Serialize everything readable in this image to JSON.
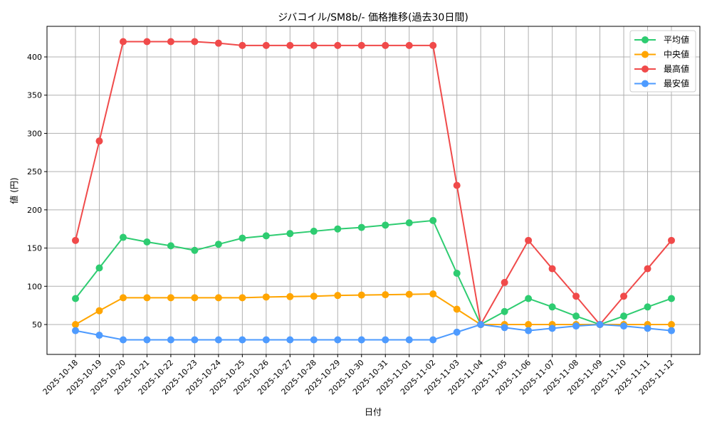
{
  "chart_data": {
    "type": "line",
    "title": "ジバコイル/SM8b/- 価格推移(過去30日間)",
    "xlabel": "日付",
    "ylabel": "値 (円)",
    "ylim": [
      10,
      437
    ],
    "yticks": [
      50,
      100,
      150,
      200,
      250,
      300,
      350,
      400
    ],
    "grid": true,
    "legend_position": "upper right",
    "x": [
      "2025-10-18",
      "2025-10-19",
      "2025-10-20",
      "2025-10-21",
      "2025-10-22",
      "2025-10-23",
      "2025-10-24",
      "2025-10-25",
      "2025-10-26",
      "2025-10-27",
      "2025-10-28",
      "2025-10-29",
      "2025-10-30",
      "2025-10-31",
      "2025-11-01",
      "2025-11-02",
      "2025-11-03",
      "2025-11-04",
      "2025-11-05",
      "2025-11-06",
      "2025-11-07",
      "2025-11-08",
      "2025-11-09",
      "2025-11-10",
      "2025-11-11",
      "2025-11-12"
    ],
    "series": [
      {
        "name": "平均値",
        "color": "#2ecc71",
        "values": [
          84,
          124,
          164,
          158,
          153,
          147,
          155,
          163,
          166,
          169,
          172,
          175,
          177,
          180,
          183,
          186,
          117,
          50,
          67,
          84,
          73,
          61,
          50,
          61,
          73,
          84
        ]
      },
      {
        "name": "中央値",
        "color": "#ffa500",
        "values": [
          50,
          68,
          85,
          85,
          85,
          85,
          85,
          85,
          86,
          86.5,
          87,
          88,
          88.5,
          89,
          89.5,
          90,
          70,
          50,
          50,
          50,
          50,
          50,
          50,
          50,
          50,
          50
        ]
      },
      {
        "name": "最高値",
        "color": "#f04a4a",
        "values": [
          160,
          290,
          420,
          420,
          420,
          420,
          418,
          415,
          415,
          415,
          415,
          415,
          415,
          415,
          415,
          415,
          232,
          50,
          105,
          160,
          123,
          87,
          50,
          87,
          123,
          160
        ]
      },
      {
        "name": "最安値",
        "color": "#4e9bff",
        "values": [
          42,
          36,
          30,
          30,
          30,
          30,
          30,
          30,
          30,
          30,
          30,
          30,
          30,
          30,
          30,
          30,
          40,
          50,
          46,
          42,
          45,
          48,
          50,
          48,
          45,
          42
        ]
      }
    ]
  }
}
